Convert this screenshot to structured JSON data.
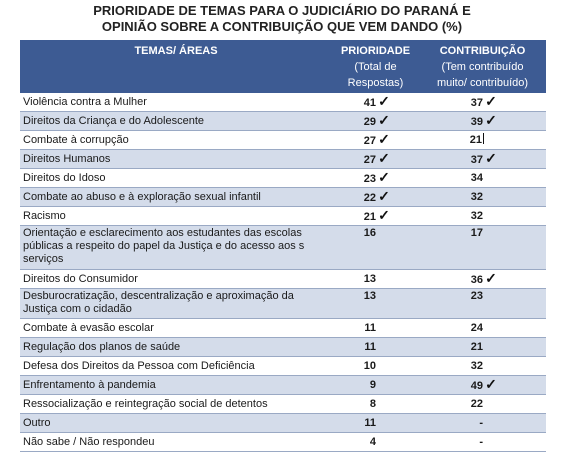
{
  "title": {
    "line1": "PRIORIDADE DE TEMAS PARA O JUDICIÁRIO DO PARANÁ E",
    "line2": "OPINIÃO SOBRE A CONTRIBUIÇÃO QUE VEM DANDO (%)"
  },
  "headers": {
    "temas": "TEMAS/ ÁREAS",
    "prioridade": "PRIORIDADE",
    "prioridade_sub1": "(Total de",
    "prioridade_sub2": "Respostas)",
    "contribuicao": "CONTRIBUIÇÃO",
    "contribuicao_sub1": "(Tem contribuído",
    "contribuicao_sub2": "muito/ contribuído)"
  },
  "check_glyph": "✓",
  "rows": [
    {
      "tema": "Violência contra a Mulher",
      "prioridade": "41",
      "contribuicao": "37"
    },
    {
      "tema": "Direitos da Criança e do Adolescente",
      "prioridade": "29",
      "contribuicao": "39"
    },
    {
      "tema": "Combate à corrupção",
      "prioridade": "27",
      "contribuicao": "21"
    },
    {
      "tema": "Direitos Humanos",
      "prioridade": "27",
      "contribuicao": "37"
    },
    {
      "tema": "Direitos do Idoso",
      "prioridade": "23",
      "contribuicao": "34"
    },
    {
      "tema": "Combate ao abuso e à exploração sexual infantil",
      "prioridade": "22",
      "contribuicao": "32"
    },
    {
      "tema": "Racismo",
      "prioridade": "21",
      "contribuicao": "32"
    },
    {
      "tema": "Orientação e esclarecimento aos estudantes das escolas públicas a respeito do papel da Justiça e do acesso aos  s serviços",
      "prioridade": "16",
      "contribuicao": "17"
    },
    {
      "tema": "Direitos do Consumidor",
      "prioridade": "13",
      "contribuicao": "36"
    },
    {
      "tema": "Desburocratização, descentralização e aproximação da Justiça com o cidadão",
      "prioridade": "13",
      "contribuicao": "23"
    },
    {
      "tema": "Combate à evasão escolar",
      "prioridade": "11",
      "contribuicao": "24"
    },
    {
      "tema": "Regulação dos planos de saúde",
      "prioridade": "11",
      "contribuicao": "21"
    },
    {
      "tema": "Defesa dos Direitos da Pessoa com Deficiência",
      "prioridade": "10",
      "contribuicao": "32"
    },
    {
      "tema": "Enfrentamento à pandemia",
      "prioridade": "9",
      "contribuicao": "49"
    },
    {
      "tema": "Ressocialização e reintegração social de detentos",
      "prioridade": "8",
      "contribuicao": "22"
    },
    {
      "tema": "Outro",
      "prioridade": "11",
      "contribuicao": "-"
    },
    {
      "tema": "Não sabe / Não respondeu",
      "prioridade": "4",
      "contribuicao": "-"
    }
  ]
}
